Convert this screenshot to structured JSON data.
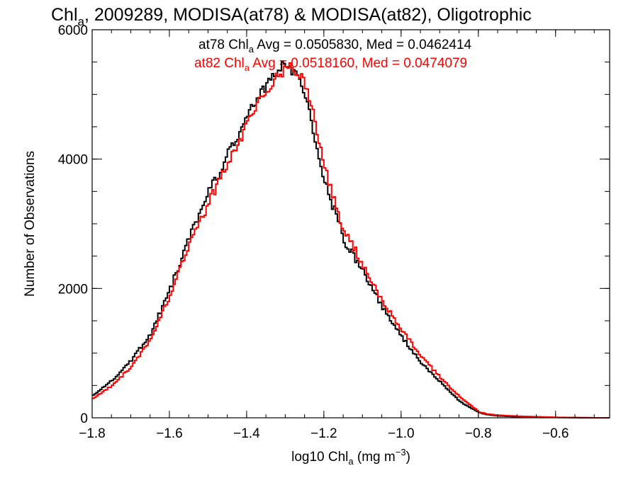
{
  "chart_data": {
    "type": "line",
    "title_parts": [
      "Chl",
      "a",
      ", 2009289, MODISA(at78) & MODISA(at82), Oligotrophic"
    ],
    "xlabel_parts": [
      "log10 Chl",
      "a",
      " (mg m",
      "−3",
      ")"
    ],
    "ylabel": "Number of Observations",
    "xlim": [
      -1.8,
      -0.46
    ],
    "ylim": [
      0,
      6000
    ],
    "xticks": [
      -1.8,
      -1.6,
      -1.4,
      -1.2,
      -1.0,
      -0.8,
      -0.6
    ],
    "xtick_labels": [
      "−1.8",
      "−1.6",
      "−1.4",
      "−1.2",
      "−1.0",
      "−0.8",
      "−0.6"
    ],
    "yticks": [
      0,
      2000,
      4000,
      6000
    ],
    "ytick_labels": [
      "0",
      "2000",
      "4000",
      "6000"
    ],
    "grid": false,
    "annotations": [
      {
        "prefix": "at78 Chl",
        "sub": "a",
        "suffix": " Avg = 0.0505830, Med = 0.0462414",
        "color": "#000000"
      },
      {
        "prefix": "at82 Chl",
        "sub": "a",
        "suffix": " Avg = 0.0518160, Med = 0.0474079",
        "color": "#ff0000"
      }
    ],
    "series": [
      {
        "color": "#000000",
        "x": [
          -1.8,
          -1.75,
          -1.7,
          -1.65,
          -1.6,
          -1.55,
          -1.52,
          -1.5,
          -1.47,
          -1.45,
          -1.42,
          -1.4,
          -1.38,
          -1.35,
          -1.33,
          -1.31,
          -1.3,
          -1.29,
          -1.28,
          -1.27,
          -1.25,
          -1.23,
          -1.21,
          -1.2,
          -1.18,
          -1.16,
          -1.15,
          -1.13,
          -1.1,
          -1.05,
          -1.0,
          -0.95,
          -0.9,
          -0.85,
          -0.8,
          -0.78,
          -0.75,
          -0.7,
          -0.6,
          -0.5,
          -0.46
        ],
        "y": [
          350,
          580,
          900,
          1300,
          2000,
          2800,
          3150,
          3500,
          3800,
          4100,
          4400,
          4650,
          4900,
          5150,
          5300,
          5450,
          5480,
          5420,
          5350,
          5250,
          5000,
          4400,
          3950,
          3650,
          3300,
          2950,
          2750,
          2550,
          2250,
          1700,
          1250,
          850,
          550,
          250,
          80,
          50,
          30,
          15,
          5,
          0,
          0
        ]
      },
      {
        "color": "#ff0000",
        "x": [
          -1.8,
          -1.75,
          -1.7,
          -1.65,
          -1.6,
          -1.55,
          -1.52,
          -1.5,
          -1.47,
          -1.45,
          -1.42,
          -1.4,
          -1.38,
          -1.35,
          -1.33,
          -1.31,
          -1.3,
          -1.29,
          -1.28,
          -1.27,
          -1.25,
          -1.23,
          -1.21,
          -1.2,
          -1.18,
          -1.16,
          -1.15,
          -1.13,
          -1.1,
          -1.05,
          -1.0,
          -0.95,
          -0.9,
          -0.85,
          -0.8,
          -0.78,
          -0.75,
          -0.7,
          -0.6,
          -0.5,
          -0.46
        ],
        "y": [
          300,
          500,
          800,
          1200,
          1900,
          2700,
          3050,
          3350,
          3700,
          3950,
          4300,
          4550,
          4800,
          5050,
          5250,
          5350,
          5400,
          5420,
          5400,
          5350,
          5150,
          4700,
          4150,
          3850,
          3450,
          3050,
          2880,
          2700,
          2350,
          1800,
          1350,
          950,
          620,
          320,
          90,
          60,
          40,
          25,
          8,
          0,
          0
        ]
      }
    ]
  }
}
